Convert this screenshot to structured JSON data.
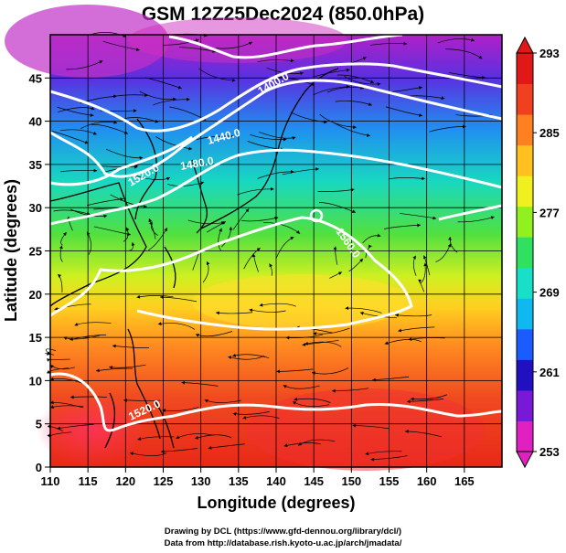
{
  "title": "GSM 12Z25Dec2024 (850.0hPa)",
  "x_axis": {
    "label": "Longitude (degrees)",
    "ticks": [
      "110",
      "115",
      "120",
      "125",
      "130",
      "135",
      "140",
      "145",
      "150",
      "155",
      "160",
      "165"
    ]
  },
  "y_axis": {
    "label": "Latitude (degrees)",
    "ticks": [
      "0",
      "5",
      "10",
      "15",
      "20",
      "25",
      "30",
      "35",
      "40",
      "45"
    ]
  },
  "colorbar": {
    "ticks": [
      "293",
      "285",
      "277",
      "269",
      "261",
      "253"
    ],
    "min": 253,
    "max": 293,
    "colors": [
      "#e020c0",
      "#7a18d8",
      "#2010c0",
      "#1a5cff",
      "#10b8f0",
      "#18e0c8",
      "#30e060",
      "#90f020",
      "#f0f020",
      "#ffc020",
      "#ff8020",
      "#f04020",
      "#e01818"
    ]
  },
  "contour_labels": [
    "1440.0",
    "1480.0",
    "1520.0",
    "1560.0",
    "1520.0",
    "1400.0"
  ],
  "credits": {
    "line1": "Drawing by DCL (https://www.gfd-dennou.org/library/dcl/)",
    "line2": "Data from http://database.rish.kyoto-u.ac.jp/arch/jmadata/"
  }
}
